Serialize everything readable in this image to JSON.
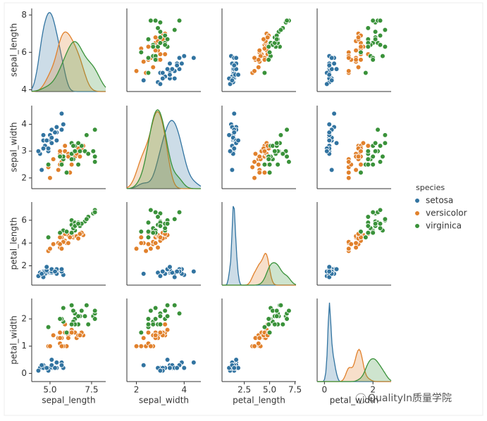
{
  "chart_data": {
    "type": "pairplot",
    "legend_title": "species",
    "axes": [
      {
        "name": "sepal_length",
        "lim": [
          3.9,
          8.35
        ],
        "xticks": [
          {
            "value": 5,
            "label": "5.0"
          },
          7.5
        ],
        "yticks": [
          4,
          6,
          8
        ]
      },
      {
        "name": "sepal_width",
        "lim": [
          1.6,
          4.7
        ],
        "xticks": [
          2,
          4
        ],
        "yticks": [
          2,
          3,
          4
        ]
      },
      {
        "name": "petal_length",
        "lim": [
          0.3,
          7.6
        ],
        "xticks": [
          2.5,
          {
            "value": 5,
            "label": "5.0"
          },
          7.5
        ],
        "yticks": [
          2,
          4,
          6
        ]
      },
      {
        "name": "petal_width",
        "lim": [
          -0.3,
          2.75
        ],
        "xticks": [
          0,
          2
        ],
        "yticks": [
          0,
          1,
          2
        ]
      }
    ],
    "series": [
      {
        "name": "setosa",
        "color": "#3274a1",
        "values": [
          [
            5.1,
            3.5,
            1.4,
            0.2
          ],
          [
            4.9,
            3.0,
            1.4,
            0.2
          ],
          [
            4.7,
            3.2,
            1.3,
            0.2
          ],
          [
            4.6,
            3.1,
            1.5,
            0.2
          ],
          [
            5.0,
            3.6,
            1.4,
            0.2
          ],
          [
            5.4,
            3.9,
            1.7,
            0.4
          ],
          [
            4.6,
            3.4,
            1.4,
            0.3
          ],
          [
            5.0,
            3.4,
            1.5,
            0.2
          ],
          [
            4.4,
            2.9,
            1.4,
            0.2
          ],
          [
            4.9,
            3.1,
            1.5,
            0.1
          ],
          [
            5.4,
            3.7,
            1.5,
            0.2
          ],
          [
            4.8,
            3.4,
            1.6,
            0.2
          ],
          [
            4.3,
            3.0,
            1.1,
            0.1
          ],
          [
            5.8,
            4.0,
            1.2,
            0.2
          ],
          [
            5.7,
            4.4,
            1.5,
            0.4
          ],
          [
            5.4,
            3.9,
            1.3,
            0.4
          ],
          [
            5.1,
            3.5,
            1.4,
            0.3
          ],
          [
            5.7,
            3.8,
            1.7,
            0.3
          ],
          [
            5.1,
            3.8,
            1.5,
            0.3
          ],
          [
            5.4,
            3.4,
            1.7,
            0.2
          ],
          [
            4.6,
            3.6,
            1.0,
            0.2
          ],
          [
            5.1,
            3.3,
            1.7,
            0.5
          ],
          [
            4.8,
            3.4,
            1.9,
            0.2
          ],
          [
            4.5,
            2.3,
            1.3,
            0.3
          ],
          [
            5.3,
            3.7,
            1.5,
            0.2
          ]
        ]
      },
      {
        "name": "versicolor",
        "color": "#e1812c",
        "values": [
          [
            7.0,
            3.2,
            4.7,
            1.4
          ],
          [
            6.4,
            3.2,
            4.5,
            1.5
          ],
          [
            6.9,
            3.1,
            4.9,
            1.5
          ],
          [
            5.5,
            2.3,
            4.0,
            1.3
          ],
          [
            6.5,
            2.8,
            4.6,
            1.5
          ],
          [
            5.7,
            2.8,
            4.5,
            1.3
          ],
          [
            6.3,
            3.3,
            4.7,
            1.6
          ],
          [
            4.9,
            2.4,
            3.3,
            1.0
          ],
          [
            6.6,
            2.9,
            4.6,
            1.3
          ],
          [
            5.2,
            2.7,
            3.9,
            1.4
          ],
          [
            5.0,
            2.0,
            3.5,
            1.0
          ],
          [
            5.9,
            3.0,
            4.2,
            1.5
          ],
          [
            6.0,
            2.2,
            4.0,
            1.0
          ],
          [
            6.1,
            2.9,
            4.7,
            1.4
          ],
          [
            5.6,
            2.9,
            3.6,
            1.3
          ],
          [
            6.7,
            3.1,
            4.4,
            1.4
          ],
          [
            5.6,
            3.0,
            4.5,
            1.5
          ],
          [
            5.8,
            2.7,
            4.1,
            1.0
          ],
          [
            6.2,
            2.2,
            4.5,
            1.5
          ],
          [
            5.6,
            2.5,
            3.9,
            1.1
          ],
          [
            5.9,
            3.2,
            4.8,
            1.8
          ],
          [
            6.1,
            2.8,
            4.0,
            1.3
          ],
          [
            6.3,
            2.5,
            4.9,
            1.5
          ],
          [
            6.8,
            2.8,
            4.8,
            1.4
          ],
          [
            5.7,
            2.6,
            3.5,
            1.0
          ]
        ]
      },
      {
        "name": "virginica",
        "color": "#3a923a",
        "values": [
          [
            6.3,
            3.3,
            6.0,
            2.5
          ],
          [
            5.8,
            2.7,
            5.1,
            1.9
          ],
          [
            7.1,
            3.0,
            5.9,
            2.1
          ],
          [
            6.3,
            2.9,
            5.6,
            1.8
          ],
          [
            6.5,
            3.0,
            5.8,
            2.2
          ],
          [
            7.6,
            3.0,
            6.6,
            2.1
          ],
          [
            4.9,
            2.5,
            4.5,
            1.7
          ],
          [
            7.3,
            2.9,
            6.3,
            1.8
          ],
          [
            6.7,
            2.5,
            5.8,
            1.8
          ],
          [
            7.2,
            3.6,
            6.1,
            2.5
          ],
          [
            6.5,
            3.2,
            5.1,
            2.0
          ],
          [
            6.4,
            2.7,
            5.3,
            1.9
          ],
          [
            6.8,
            3.0,
            5.5,
            2.1
          ],
          [
            5.7,
            2.5,
            5.0,
            2.0
          ],
          [
            5.8,
            2.8,
            5.1,
            2.4
          ],
          [
            6.4,
            3.2,
            5.3,
            2.3
          ],
          [
            6.5,
            3.0,
            5.5,
            1.8
          ],
          [
            7.7,
            3.8,
            6.7,
            2.2
          ],
          [
            7.7,
            2.6,
            6.9,
            2.3
          ],
          [
            6.0,
            2.2,
            5.0,
            1.5
          ],
          [
            6.9,
            3.2,
            5.7,
            2.3
          ],
          [
            5.6,
            2.8,
            4.9,
            2.0
          ],
          [
            7.7,
            2.8,
            6.7,
            2.0
          ],
          [
            6.3,
            2.7,
            4.9,
            1.8
          ],
          [
            6.7,
            3.3,
            5.7,
            2.1
          ]
        ]
      }
    ]
  },
  "watermark": "QualityIn质量学院"
}
